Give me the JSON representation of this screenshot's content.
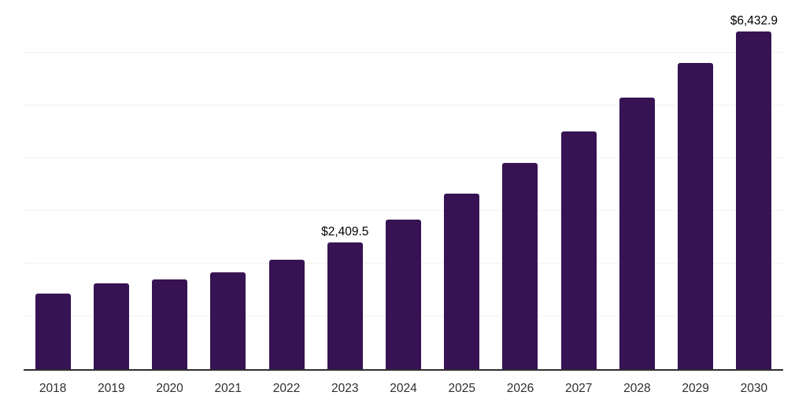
{
  "chart": {
    "background": "#ffffff",
    "bar_color": "#371353",
    "axis_color": "#2e2e2e",
    "gridline_color": "#f2f2f2",
    "value_label_color": "#000000",
    "tick_label_color": "#2e2e2e"
  },
  "chart_data": {
    "type": "bar",
    "title": "",
    "xlabel": "",
    "ylabel": "",
    "categories": [
      "2018",
      "2019",
      "2020",
      "2021",
      "2022",
      "2023",
      "2024",
      "2025",
      "2026",
      "2027",
      "2028",
      "2029",
      "2030"
    ],
    "values": [
      1440,
      1640,
      1715,
      1850,
      2090,
      2409.5,
      2850,
      3350,
      3925,
      4525,
      5170,
      5830,
      6432.9
    ],
    "value_labels": [
      {
        "index": 5,
        "text": "$2,409.5"
      },
      {
        "index": 12,
        "text": "$6,432.9"
      }
    ],
    "ylim": [
      0,
      7035
    ],
    "gridline_count": 7,
    "grid": "horizontal",
    "legend": "none"
  }
}
